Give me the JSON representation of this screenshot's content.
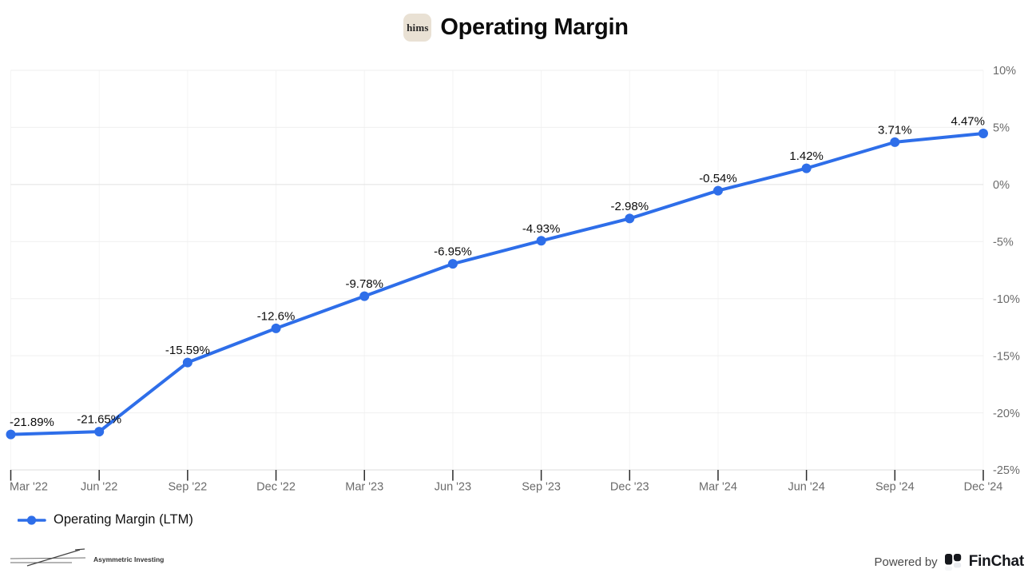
{
  "header": {
    "title": "Operating Margin",
    "logo_text": "hims"
  },
  "chart_data": {
    "type": "line",
    "title": "Operating Margin",
    "categories": [
      "Mar '22",
      "Jun '22",
      "Sep '22",
      "Dec '22",
      "Mar '23",
      "Jun '23",
      "Sep '23",
      "Dec '23",
      "Mar '24",
      "Jun '24",
      "Sep '24",
      "Dec '24"
    ],
    "series": [
      {
        "name": "Operating Margin (LTM)",
        "values": [
          -21.89,
          -21.65,
          -15.59,
          -12.6,
          -9.78,
          -6.95,
          -4.93,
          -2.98,
          -0.54,
          1.42,
          3.71,
          4.47
        ]
      }
    ],
    "data_labels": [
      "-21.89%",
      "-21.65%",
      "-15.59%",
      "-12.6%",
      "-9.78%",
      "-6.95%",
      "-4.93%",
      "-2.98%",
      "-0.54%",
      "1.42%",
      "3.71%",
      "4.47%"
    ],
    "y_ticks": [
      10,
      5,
      0,
      -5,
      -10,
      -15,
      -20,
      -25
    ],
    "y_tick_labels": [
      "10%",
      "5%",
      "0%",
      "-5%",
      "-10%",
      "-15%",
      "-20%",
      "-25%"
    ],
    "ylim": [
      -25,
      10
    ],
    "xlabel": "",
    "ylabel": "",
    "grid": true,
    "legend_position": "bottom-left",
    "y_axis_side": "right"
  },
  "legend": {
    "label": "Operating Margin (LTM)"
  },
  "footer": {
    "watermark": "Asymmetric Investing",
    "powered_by": "Powered by",
    "brand": "FinChat"
  },
  "colors": {
    "line": "#2e6ee9",
    "data_label": "#0b0b0b",
    "axis_label": "#6b6b6b",
    "grid": "#efefef",
    "zero_line": "#e2e2e2",
    "tick": "#2b2b2b",
    "hims_badge_bg": "#e9e1d4",
    "finchat_dark": "#15171c",
    "finchat_ghost": "#e9ebef"
  }
}
